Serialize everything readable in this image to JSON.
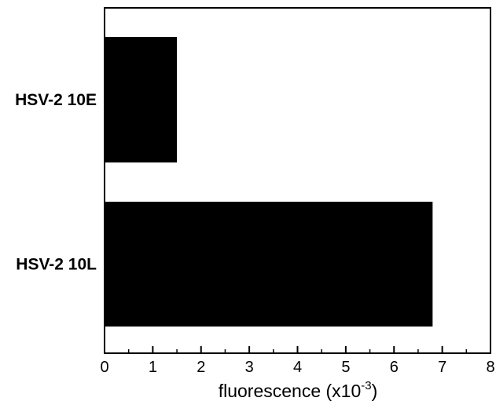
{
  "chart_data": {
    "type": "bar",
    "orientation": "horizontal",
    "categories": [
      "HSV-2 10E",
      "HSV-2 10L"
    ],
    "values": [
      1.5,
      6.8
    ],
    "xlim": [
      0,
      8
    ],
    "x_ticks": [
      "0",
      "1",
      "2",
      "3",
      "4",
      "5",
      "6",
      "7",
      "8"
    ],
    "xlabel": {
      "main": "fluorescence (x10",
      "superscript": "-3",
      "suffix": ")"
    },
    "grid": false,
    "colors": {
      "bar": "#000000",
      "axis": "#000000",
      "background": "#ffffff"
    }
  }
}
